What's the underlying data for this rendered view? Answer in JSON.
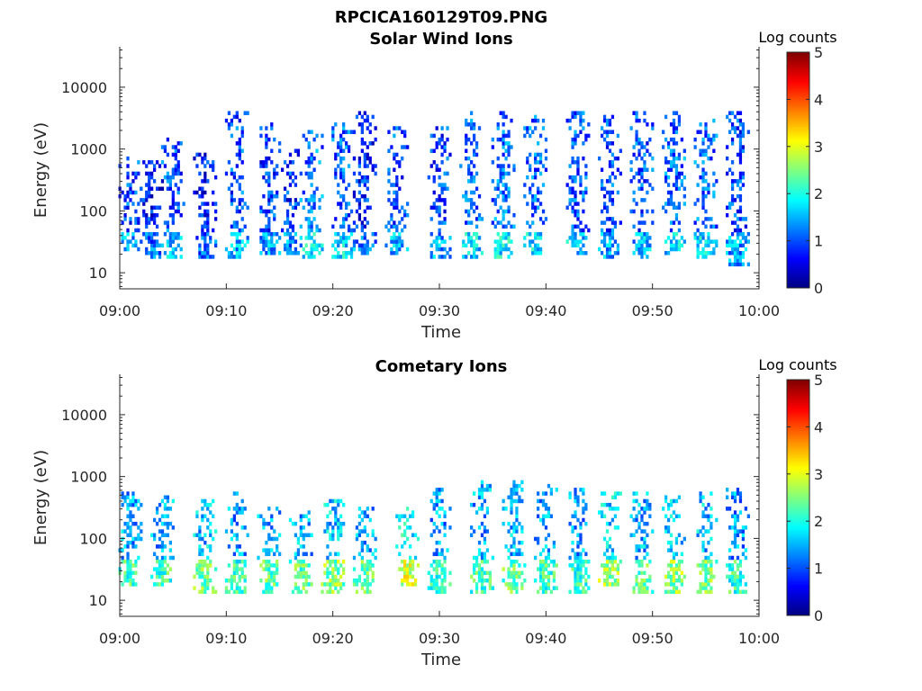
{
  "figure": {
    "title": "RPCICA160129T09.PNG"
  },
  "chart_data": [
    {
      "type": "heatmap",
      "title": "Solar Wind Ions",
      "xlabel": "Time",
      "ylabel": "Energy (eV)",
      "x_ticks": [
        "09:00",
        "09:10",
        "09:20",
        "09:30",
        "09:40",
        "09:50",
        "10:00"
      ],
      "xlim": [
        "09:00",
        "10:00"
      ],
      "y_scale": "log",
      "y_ticks": [
        10,
        100,
        1000,
        10000
      ],
      "y_tick_labels": [
        "10",
        "100",
        "1000",
        "10000"
      ],
      "ylim": [
        5.5,
        45000
      ],
      "colorbar": {
        "label": "Log counts",
        "min": 0,
        "max": 5,
        "ticks": [
          "0",
          "1",
          "2",
          "3",
          "4",
          "5"
        ],
        "colormap": "jet"
      },
      "bursts": [
        {
          "t": "09:01",
          "emin": 25,
          "emax": 700,
          "level": 1.4
        },
        {
          "t": "09:03",
          "emin": 20,
          "emax": 550,
          "level": 1.1
        },
        {
          "t": "09:05",
          "emin": 20,
          "emax": 1300,
          "level": 1.6
        },
        {
          "t": "09:08",
          "emin": 20,
          "emax": 800,
          "level": 1.1
        },
        {
          "t": "09:11",
          "emin": 20,
          "emax": 3500,
          "level": 1.5
        },
        {
          "t": "09:14",
          "emin": 22,
          "emax": 2500,
          "level": 1.4
        },
        {
          "t": "09:16",
          "emin": 22,
          "emax": 900,
          "level": 1.3
        },
        {
          "t": "09:18",
          "emin": 20,
          "emax": 1800,
          "level": 1.8
        },
        {
          "t": "09:21",
          "emin": 20,
          "emax": 2500,
          "level": 1.7
        },
        {
          "t": "09:23",
          "emin": 22,
          "emax": 3500,
          "level": 1.2
        },
        {
          "t": "09:26",
          "emin": 22,
          "emax": 2000,
          "level": 1.5
        },
        {
          "t": "09:30",
          "emin": 20,
          "emax": 2200,
          "level": 1.4
        },
        {
          "t": "09:33",
          "emin": 18,
          "emax": 3500,
          "level": 1.7
        },
        {
          "t": "09:36",
          "emin": 20,
          "emax": 3500,
          "level": 1.8
        },
        {
          "t": "09:39",
          "emin": 22,
          "emax": 3000,
          "level": 1.7
        },
        {
          "t": "09:43",
          "emin": 22,
          "emax": 3500,
          "level": 1.6
        },
        {
          "t": "09:46",
          "emin": 20,
          "emax": 3000,
          "level": 1.5
        },
        {
          "t": "09:49",
          "emin": 20,
          "emax": 3500,
          "level": 1.5
        },
        {
          "t": "09:52",
          "emin": 22,
          "emax": 3500,
          "level": 1.7
        },
        {
          "t": "09:55",
          "emin": 20,
          "emax": 3200,
          "level": 1.7
        },
        {
          "t": "09:58",
          "emin": 15,
          "emax": 3500,
          "level": 1.4
        }
      ]
    },
    {
      "type": "heatmap",
      "title": "Cometary Ions",
      "xlabel": "Time",
      "ylabel": "Energy (eV)",
      "x_ticks": [
        "09:00",
        "09:10",
        "09:20",
        "09:30",
        "09:40",
        "09:50",
        "10:00"
      ],
      "xlim": [
        "09:00",
        "10:00"
      ],
      "y_scale": "log",
      "y_ticks": [
        10,
        100,
        1000,
        10000
      ],
      "y_tick_labels": [
        "10",
        "100",
        "1000",
        "10000"
      ],
      "ylim": [
        5.5,
        45000
      ],
      "colorbar": {
        "label": "Log counts",
        "min": 0,
        "max": 5,
        "ticks": [
          "0",
          "1",
          "2",
          "3",
          "4",
          "5"
        ],
        "colormap": "jet"
      },
      "bursts": [
        {
          "t": "09:01",
          "emin": 18,
          "emax": 500,
          "level": 2.2
        },
        {
          "t": "09:04",
          "emin": 18,
          "emax": 450,
          "level": 2.2
        },
        {
          "t": "09:08",
          "emin": 15,
          "emax": 400,
          "level": 2.4
        },
        {
          "t": "09:11",
          "emin": 15,
          "emax": 500,
          "level": 2.1
        },
        {
          "t": "09:14",
          "emin": 15,
          "emax": 300,
          "level": 2.3
        },
        {
          "t": "09:17",
          "emin": 15,
          "emax": 250,
          "level": 2.3
        },
        {
          "t": "09:20",
          "emin": 15,
          "emax": 400,
          "level": 2.5
        },
        {
          "t": "09:23",
          "emin": 15,
          "emax": 300,
          "level": 2.3
        },
        {
          "t": "09:27",
          "emin": 18,
          "emax": 300,
          "level": 2.9
        },
        {
          "t": "09:30",
          "emin": 15,
          "emax": 600,
          "level": 2.1
        },
        {
          "t": "09:34",
          "emin": 15,
          "emax": 800,
          "level": 2.2
        },
        {
          "t": "09:37",
          "emin": 15,
          "emax": 800,
          "level": 2.3
        },
        {
          "t": "09:40",
          "emin": 15,
          "emax": 700,
          "level": 2.2
        },
        {
          "t": "09:43",
          "emin": 15,
          "emax": 600,
          "level": 2.1
        },
        {
          "t": "09:46",
          "emin": 18,
          "emax": 500,
          "level": 2.6
        },
        {
          "t": "09:49",
          "emin": 15,
          "emax": 500,
          "level": 2.3
        },
        {
          "t": "09:52",
          "emin": 15,
          "emax": 450,
          "level": 2.6
        },
        {
          "t": "09:55",
          "emin": 15,
          "emax": 500,
          "level": 2.4
        },
        {
          "t": "09:58",
          "emin": 15,
          "emax": 600,
          "level": 2.1
        }
      ]
    }
  ]
}
